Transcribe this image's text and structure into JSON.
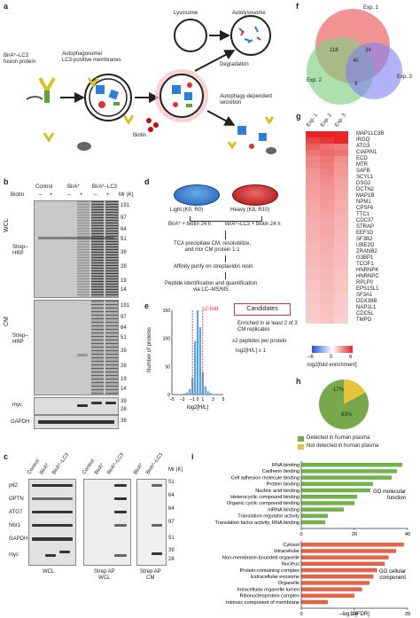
{
  "panels": {
    "a": "a",
    "b": "b",
    "c": "c",
    "d": "d",
    "e": "e",
    "f": "f",
    "g": "g",
    "h": "h",
    "i": "i"
  },
  "panel_a": {
    "fusion_label": "BirA*–LC3\nfusion protein",
    "autophagosome_label": "Autophagosome/\nLC3-positive membranes",
    "lysosome_label": "Lysosome",
    "autolysosome_label": "Autolysosome",
    "degradation_label": "Degradation",
    "secretion_label": "Autophagy-dependent\nsecretion",
    "biotin_label": "Biotin"
  },
  "panel_b": {
    "col_headers": [
      "Control",
      "BirA*",
      "BirA*–LC3"
    ],
    "biotin_label": "Biotin",
    "biotin_signs": [
      "–",
      "+",
      "–",
      "+",
      "–",
      "+"
    ],
    "mr_header": "Mr (K)",
    "wcl_label": "WCL",
    "cm_label": "CM",
    "strep_label": "Strep–\nHRP",
    "myc_label": "myc",
    "gapdh_label": "GAPDH",
    "wcl_markers": [
      "191",
      "97",
      "64",
      "51",
      "39",
      "28",
      "19",
      "14"
    ],
    "cm_markers": [
      "191",
      "97",
      "64",
      "51",
      "39",
      "28",
      "19",
      "14"
    ],
    "myc_markers": [
      "39",
      "28"
    ],
    "gapdh_marker": "39"
  },
  "panel_c": {
    "groups": [
      {
        "cols": [
          "Control",
          "BirA*",
          "BirA*–LC3"
        ],
        "label": "WCL"
      },
      {
        "cols": [
          "Control",
          "BirA*",
          "BirA*–LC3"
        ],
        "label": "Strep AP\nWCL"
      },
      {
        "cols": [
          "BirA*",
          "BirA*–LC3"
        ],
        "label": "Strep AP\nCM"
      }
    ],
    "mr_header": "Mr (K)",
    "rows": [
      "p62",
      "OPTN",
      "ATG7",
      "Nbr1",
      "GAPDH",
      "myc"
    ],
    "markers": [
      "51",
      "64",
      "64",
      "97",
      "51",
      "39",
      "28"
    ]
  },
  "panel_d": {
    "light_label": "Light (K0, R0)",
    "heavy_label": "Heavy (K8, R10)",
    "light_cond": "BirA* + biotin 24 h",
    "heavy_cond": "BirA*–LC3 + biotin 24 h",
    "step1": "TCA precipitate CM, resolubilize,\nand mix CM protein 1:1",
    "step2": "Affinity purify on streptavidin resin",
    "step3": "Peptide identification and quantification\nvia LC–MS/MS"
  },
  "panel_e": {
    "ylabel": "Number of proteins",
    "xlabel": "log2[H/L]",
    "yticks": [
      "150",
      "100",
      "50",
      "0"
    ],
    "xticks": [
      "–5",
      "–3",
      "–1",
      "0",
      "1",
      "3",
      "5"
    ],
    "fold_label": "≥2-fold",
    "candidates_label": "Candidates",
    "criteria1": "Enriched in at least 2 of 3\nCM replicates",
    "criteria2": "≥2 peptides per protein",
    "criteria3": "log2[H/L] ≥ 1"
  },
  "panel_f": {
    "exp1": "Exp. 1",
    "exp2": "Exp. 2",
    "exp3": "Exp. 3",
    "n_12": "118",
    "n_123": "40",
    "n_13": "34",
    "n_23": "9"
  },
  "panel_g": {
    "col_labels": [
      "Exp. 1",
      "Exp. 2",
      "Exp. 3"
    ],
    "genes": [
      "MAP1LC3B",
      "IRGQ",
      "ATG3",
      "CIAPIN1",
      "ECD",
      "MTR",
      "SAFB",
      "SCYL1",
      "DSG2",
      "DCTN2",
      "MAP1B",
      "NPM1",
      "CPSF6",
      "TTC1",
      "CDC37",
      "STRAP",
      "EEF1D",
      "SF3B2",
      "UBE2O",
      "ZRANB2",
      "G3BP1",
      "TCOF1",
      "HNRNPK",
      "HNRNPC",
      "RPLP0",
      "EPS15L1",
      "SF3A1",
      "DDX39B",
      "NAP1L1",
      "CDC5L",
      "TMPO"
    ],
    "scale_ticks": [
      "–6",
      "0",
      "6"
    ],
    "scale_label": "log2[fold enrichment]"
  },
  "panel_h": {
    "pct_detected": "83%",
    "pct_not": "17%",
    "legend_detected": "Detected in human plasma",
    "legend_not": "Not detected in human plasma",
    "color_detected": "#77a84a",
    "color_not": "#e6c33b"
  },
  "panel_i": {
    "mf_terms": [
      "RNA binding",
      "Cadherin binding",
      "Cell adhesion molecule binding",
      "Protein binding",
      "Nucleic acid binding",
      "Heterocyclic compound binding",
      "Organic cyclic compound binding",
      "mRNA binding",
      "Translation regulator activity",
      "Translation factor activity, RNA binding"
    ],
    "cc_terms": [
      "Cytosol",
      "Intracellular",
      "Non-membrane-bounded organelle",
      "Nucleus",
      "Protein-containing complex",
      "Extracellular exosome",
      "Organelle",
      "Intracellular organelle lumen",
      "Ribonucleoprotein complex",
      "Intrinsic component of membrane"
    ],
    "mf_label": "GO molecular\nfunction",
    "cc_label": "GO cellular\ncomponent",
    "mf_ticks": [
      "0",
      "20",
      "40"
    ],
    "cc_ticks": [
      "0",
      "14",
      "28"
    ],
    "xlabel": "–log10[FDR]",
    "mf_color": "#72b24a",
    "cc_color": "#e2654a"
  },
  "chart_data": [
    {
      "type": "bar",
      "panel": "e",
      "xlabel": "log2[H/L]",
      "ylabel": "Number of proteins",
      "x": [
        -3,
        -2.5,
        -2,
        -1.5,
        -1,
        -0.5,
        0,
        0.5,
        1,
        1.5,
        2,
        2.5,
        3
      ],
      "values": [
        1,
        2,
        4,
        10,
        30,
        95,
        150,
        120,
        40,
        15,
        6,
        3,
        1
      ],
      "ylim": [
        0,
        150
      ],
      "color": "#5aa7e6"
    },
    {
      "type": "bar",
      "panel": "i",
      "title": "GO molecular function",
      "xlabel": "–log10[FDR]",
      "categories": [
        "RNA binding",
        "Cadherin binding",
        "Cell adhesion molecule binding",
        "Protein binding",
        "Nucleic acid binding",
        "Heterocyclic compound binding",
        "Organic cyclic compound binding",
        "mRNA binding",
        "Translation regulator activity",
        "Translation factor activity, RNA binding"
      ],
      "values": [
        38,
        36,
        34,
        27,
        26,
        21,
        20,
        16,
        10,
        9
      ],
      "xlim": [
        0,
        40
      ],
      "color": "#72b24a"
    },
    {
      "type": "bar",
      "panel": "i",
      "title": "GO cellular component",
      "xlabel": "–log10[FDR]",
      "categories": [
        "Cytosol",
        "Intracellular",
        "Non-membrane-bounded organelle",
        "Nucleus",
        "Protein-containing complex",
        "Extracellular exosome",
        "Organelle",
        "Intracellular organelle lumen",
        "Ribonucleoprotein complex",
        "Intrinsic component of membrane"
      ],
      "values": [
        27,
        25,
        23,
        22,
        20,
        19,
        18,
        16,
        14,
        7
      ],
      "xlim": [
        0,
        28
      ],
      "color": "#e2654a"
    },
    {
      "type": "heatmap",
      "panel": "g",
      "columns": [
        "Exp. 1",
        "Exp. 2",
        "Exp. 3"
      ],
      "rows": [
        "MAP1LC3B",
        "IRGQ",
        "ATG3",
        "CIAPIN1",
        "ECD",
        "MTR",
        "SAFB",
        "SCYL1",
        "DSG2",
        "DCTN2",
        "MAP1B",
        "NPM1",
        "CPSF6",
        "TTC1",
        "CDC37",
        "STRAP",
        "EEF1D",
        "SF3B2",
        "UBE2O",
        "ZRANB2",
        "G3BP1",
        "TCOF1",
        "HNRNPK",
        "HNRNPC",
        "RPLP0",
        "EPS15L1",
        "SF3A1",
        "DDX39B",
        "NAP1L1",
        "CDC5L",
        "TMPO"
      ],
      "values": [
        [
          6.5,
          6.8,
          6.0
        ],
        [
          5.2,
          5.5,
          6.2
        ],
        [
          4.4,
          4.0,
          3.6
        ],
        [
          3.8,
          4.2,
          3.9
        ],
        [
          3.5,
          3.8,
          3.2
        ],
        [
          3.3,
          3.6,
          3.0
        ],
        [
          3.0,
          3.5,
          2.8
        ],
        [
          2.9,
          3.3,
          2.7
        ],
        [
          2.8,
          3.1,
          2.6
        ],
        [
          2.7,
          3.0,
          2.5
        ],
        [
          2.6,
          2.9,
          2.4
        ],
        [
          2.5,
          2.8,
          2.3
        ],
        [
          2.4,
          2.7,
          2.3
        ],
        [
          2.4,
          2.6,
          2.2
        ],
        [
          2.3,
          2.5,
          2.1
        ],
        [
          2.2,
          2.5,
          2.1
        ],
        [
          2.2,
          2.4,
          2.0
        ],
        [
          2.1,
          2.3,
          2.0
        ],
        [
          2.0,
          2.3,
          1.9
        ],
        [
          2.0,
          2.2,
          1.9
        ],
        [
          1.9,
          2.1,
          1.8
        ],
        [
          1.9,
          2.1,
          1.8
        ],
        [
          1.8,
          2.0,
          1.7
        ],
        [
          1.8,
          2.0,
          1.7
        ],
        [
          1.7,
          1.9,
          1.6
        ],
        [
          1.7,
          1.9,
          1.6
        ],
        [
          1.6,
          1.8,
          1.5
        ],
        [
          1.6,
          1.8,
          1.5
        ],
        [
          1.5,
          1.7,
          1.4
        ],
        [
          1.5,
          1.7,
          1.4
        ],
        [
          1.4,
          1.6,
          1.3
        ]
      ],
      "scale_range": [
        -6,
        6
      ]
    },
    {
      "type": "pie",
      "panel": "h",
      "categories": [
        "Detected in human plasma",
        "Not detected in human plasma"
      ],
      "values": [
        83,
        17
      ]
    }
  ]
}
